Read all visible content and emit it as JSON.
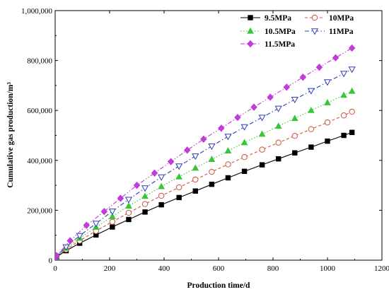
{
  "chart_data": {
    "type": "line",
    "title": "",
    "xlabel": "Production time/d",
    "ylabel": "Cumulative gas production/m³",
    "xlim": [
      0,
      1200
    ],
    "ylim": [
      0,
      1000000
    ],
    "xticks": [
      0,
      200,
      400,
      600,
      800,
      1000,
      1200
    ],
    "yticks": [
      0,
      200000,
      400000,
      600000,
      800000,
      1000000
    ],
    "xtick_labels": [
      "0",
      "200",
      "400",
      "600",
      "800",
      "1000",
      "1200"
    ],
    "ytick_labels": [
      "0",
      "200,000",
      "400,000",
      "600,000",
      "800,000",
      "1,000,000"
    ],
    "grid": false,
    "legend_position": "top-right",
    "series": [
      {
        "name": "9.5MPa",
        "color": "#000000",
        "marker": "square",
        "filled": true,
        "line": "solid",
        "x": [
          0,
          5,
          40,
          90,
          150,
          210,
          270,
          330,
          390,
          455,
          515,
          575,
          635,
          695,
          760,
          820,
          880,
          940,
          1000,
          1060,
          1090
        ],
        "y": [
          0,
          13000,
          38000,
          68000,
          101000,
          133000,
          163000,
          193000,
          222000,
          251000,
          277000,
          304000,
          330000,
          356000,
          382000,
          406000,
          430000,
          453000,
          477000,
          500000,
          512000
        ]
      },
      {
        "name": "10MPa",
        "color": "#d0523a",
        "marker": "circle",
        "filled": false,
        "line": "dash",
        "x": [
          0,
          5,
          40,
          90,
          150,
          210,
          270,
          330,
          390,
          455,
          515,
          575,
          635,
          695,
          760,
          820,
          880,
          940,
          1000,
          1060,
          1090
        ],
        "y": [
          0,
          14000,
          43000,
          78000,
          117000,
          154000,
          190000,
          225000,
          258000,
          292000,
          323000,
          354000,
          384000,
          413000,
          443000,
          471000,
          498000,
          525000,
          552000,
          580000,
          595000
        ]
      },
      {
        "name": "10.5MPa",
        "color": "#3ac43a",
        "marker": "triangle-up",
        "filled": true,
        "line": "dot",
        "x": [
          0,
          5,
          40,
          90,
          150,
          210,
          270,
          330,
          390,
          455,
          515,
          575,
          635,
          695,
          760,
          820,
          880,
          940,
          1000,
          1060,
          1090
        ],
        "y": [
          0,
          15000,
          48000,
          88000,
          132000,
          175000,
          217000,
          256000,
          295000,
          334000,
          369000,
          404000,
          438000,
          471000,
          505000,
          537000,
          568000,
          600000,
          631000,
          661000,
          677000
        ]
      },
      {
        "name": "11MPa",
        "color": "#2c3fb8",
        "marker": "triangle-down",
        "filled": false,
        "line": "dashdot",
        "x": [
          0,
          5,
          40,
          90,
          150,
          210,
          270,
          330,
          390,
          455,
          515,
          575,
          635,
          695,
          760,
          820,
          880,
          940,
          1000,
          1060,
          1090
        ],
        "y": [
          0,
          16000,
          53000,
          98000,
          147000,
          196000,
          243000,
          289000,
          333000,
          377000,
          417000,
          457000,
          496000,
          534000,
          572000,
          608000,
          644000,
          679000,
          714000,
          748000,
          765000
        ]
      },
      {
        "name": "11.5MPa",
        "color": "#c23ad8",
        "marker": "diamond",
        "filled": true,
        "line": "dashdotdot",
        "x": [
          0,
          5,
          55,
          115,
          180,
          240,
          300,
          365,
          425,
          485,
          545,
          610,
          670,
          730,
          790,
          850,
          910,
          970,
          1030,
          1090
        ],
        "y": [
          0,
          18000,
          78000,
          140000,
          195000,
          248000,
          300000,
          349000,
          395000,
          441000,
          485000,
          529000,
          572000,
          613000,
          653000,
          693000,
          733000,
          773000,
          811000,
          850000
        ]
      }
    ]
  }
}
